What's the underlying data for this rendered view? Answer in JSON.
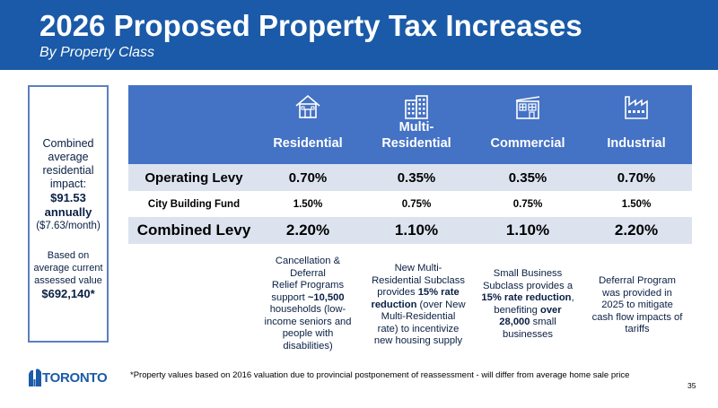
{
  "header": {
    "title": "2026 Proposed Property Tax Increases",
    "subtitle": "By Property Class"
  },
  "impact_box": {
    "line1": "Combined",
    "line2": "average",
    "line3": "residential",
    "line4": "impact:",
    "amount": "$91.53",
    "period": "annually",
    "monthly": "($7.63/month)",
    "basis1": "Based on",
    "basis2": "average current",
    "basis3": "assessed value",
    "value": "$692,140*"
  },
  "table": {
    "columns": [
      {
        "label": "Residential",
        "icon": "house-icon"
      },
      {
        "label": "Multi-\nResidential",
        "icon": "apartment-building-icon"
      },
      {
        "label": "Commercial",
        "icon": "commercial-building-icon"
      },
      {
        "label": "Industrial",
        "icon": "factory-icon"
      }
    ],
    "rows": [
      {
        "label": "Operating Levy",
        "values": [
          "0.70%",
          "0.35%",
          "0.35%",
          "0.70%"
        ]
      },
      {
        "label": "City Building Fund",
        "values": [
          "1.50%",
          "0.75%",
          "0.75%",
          "1.50%"
        ]
      },
      {
        "label": "Combined Levy",
        "values": [
          "2.20%",
          "1.10%",
          "1.10%",
          "2.20%"
        ]
      }
    ]
  },
  "notes": {
    "residential": [
      "Cancellation &",
      "Deferral",
      "Relief Programs",
      "support ",
      "~10,500",
      " households (low-",
      "income seniors and",
      "people with",
      "disabilities)"
    ],
    "multi": [
      "New Multi-",
      "Residential Subclass",
      "provides ",
      "15% rate",
      "reduction",
      " (over New",
      "Multi-Residential",
      "rate) to incentivize",
      "new housing supply"
    ],
    "commercial": [
      "Small Business",
      "Subclass provides a",
      "15% rate reduction",
      ",",
      "benefiting ",
      "over",
      "28,000",
      " small",
      "businesses"
    ],
    "industrial": [
      "Deferral Program",
      "was provided in",
      "2025 to mitigate",
      "cash flow impacts of",
      "tariffs"
    ]
  },
  "footer": {
    "logo_text": "TORONTO",
    "footnote": "*Property values based on 2016 valuation due to provincial postponement of reassessment - will differ from average home sale price",
    "page_number": "35"
  },
  "colors": {
    "header_bg": "#1a5aa8",
    "table_header_bg": "#4472c4",
    "row_shade": "#dce3ef",
    "box_border": "#5b7fc0"
  }
}
